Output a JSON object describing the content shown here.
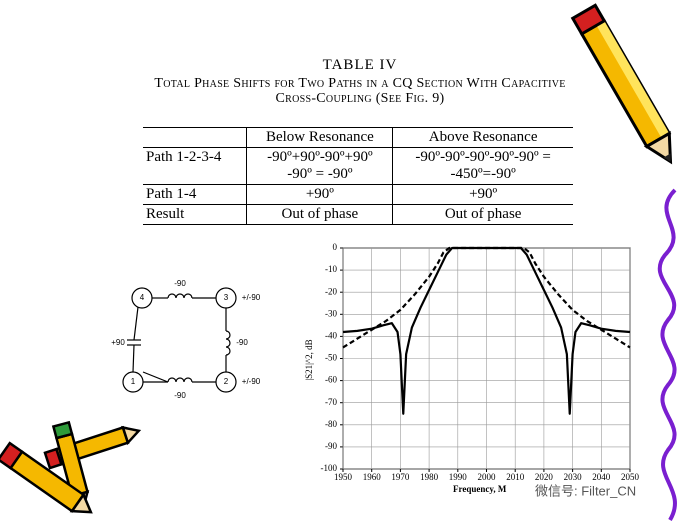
{
  "table": {
    "title": "TABLE IV",
    "caption": [
      "Total Phase Shifts for Two Paths in a CQ Section With Capacitive",
      "Cross-Coupling (See Fig. 9)"
    ],
    "columns": [
      "Below Resonance",
      "Above Resonance"
    ],
    "rows": [
      {
        "label": "Path 1-2-3-4",
        "cells": [
          [
            "-90º+90º-90º+90º",
            "-90º = -90º"
          ],
          [
            "-90º-90º-90º-90º-90º =",
            "-450º=-90º"
          ]
        ]
      },
      {
        "label": "Path 1-4",
        "cells": [
          [
            "+90º"
          ],
          [
            "+90º"
          ]
        ]
      },
      {
        "label": "Result",
        "cells": [
          [
            "Out of phase"
          ],
          [
            "Out of phase"
          ]
        ]
      }
    ]
  },
  "diagram": {
    "nodes": [
      "4",
      "3",
      "1",
      "2"
    ],
    "edges": {
      "top": "-90",
      "right": "-90",
      "left": "+90",
      "bottom": "-90"
    },
    "node_phases": {
      "3": "+/-90",
      "2": "+/-90"
    }
  },
  "chart_data": {
    "type": "line",
    "x_label": "Frequency, M",
    "y_label": "|S21|^2, dB",
    "xlim": [
      1950,
      2050
    ],
    "ylim": [
      -100,
      0
    ],
    "xticks": [
      1950,
      1960,
      1970,
      1980,
      1990,
      2000,
      2010,
      2020,
      2030,
      2040,
      2050
    ],
    "yticks": [
      0,
      -10,
      -20,
      -30,
      -40,
      -50,
      -60,
      -70,
      -80,
      -90,
      -100
    ],
    "grid": true,
    "series": [
      {
        "color": "#000000",
        "dashed": false,
        "x": [
          1950,
          1955,
          1960,
          1964,
          1967,
          1969,
          1970,
          1971,
          1972,
          1974,
          1977,
          1980,
          1983,
          1986,
          1988,
          2000,
          2012,
          2014,
          2017,
          2020,
          2023,
          2026,
          2028,
          2029,
          2030,
          2031,
          2033,
          2036,
          2040,
          2045,
          2050
        ],
        "values": [
          -38,
          -37.5,
          -36.5,
          -35,
          -34,
          -38,
          -48,
          -75,
          -48,
          -36,
          -27,
          -19,
          -11,
          -3,
          0,
          0,
          0,
          -3,
          -11,
          -19,
          -27,
          -36,
          -48,
          -75,
          -48,
          -38,
          -34,
          -35,
          -36.5,
          -37.5,
          -38
        ]
      },
      {
        "color": "#000000",
        "dashed": true,
        "x": [
          1950,
          1955,
          1960,
          1965,
          1970,
          1975,
          1980,
          1983,
          1985,
          1987,
          2013,
          2015,
          2017,
          2020,
          2025,
          2030,
          2035,
          2040,
          2045,
          2050
        ],
        "values": [
          -45,
          -41,
          -37,
          -33,
          -28,
          -21,
          -13,
          -7,
          -2,
          0,
          0,
          -2,
          -7,
          -13,
          -21,
          -28,
          -33,
          -37,
          -41,
          -45
        ]
      }
    ]
  },
  "watermark": "微信号: Filter_CN"
}
